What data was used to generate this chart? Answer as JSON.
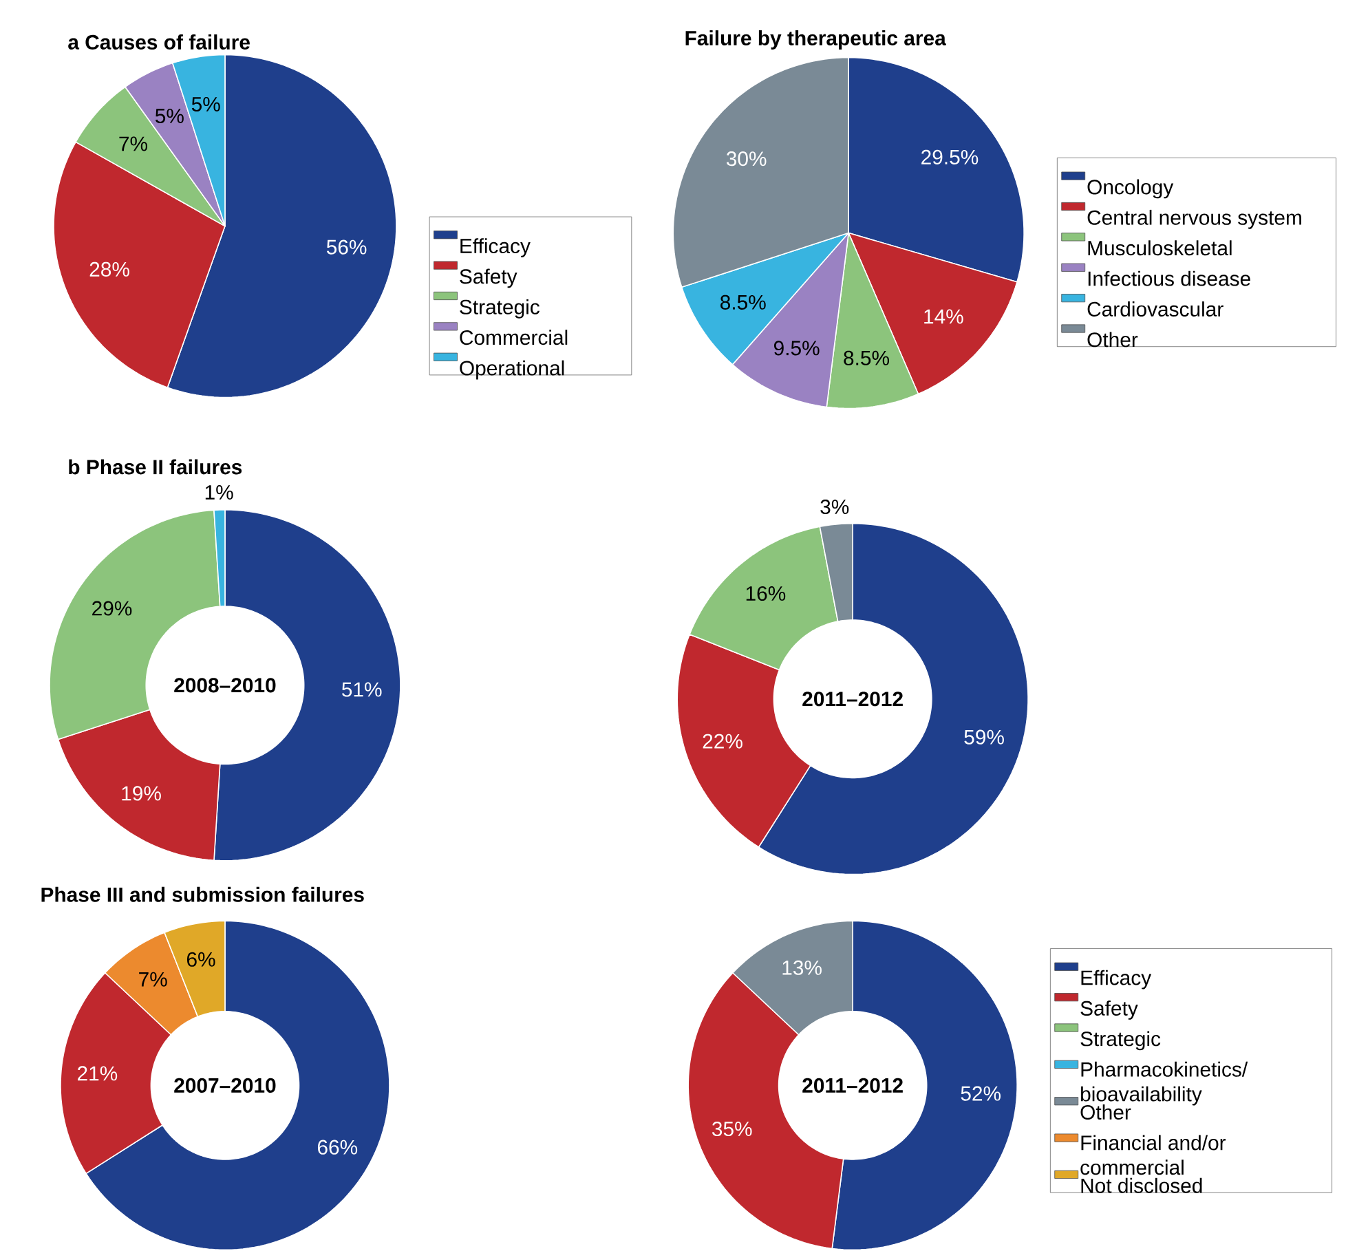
{
  "chart_data": [
    {
      "type": "pie",
      "title": "a Causes of failure",
      "categories": [
        "Efficacy",
        "Safety",
        "Strategic",
        "Commercial",
        "Operational"
      ],
      "values": [
        56,
        28,
        7,
        5,
        5
      ],
      "value_labels": [
        "56%",
        "28%",
        "7%",
        "5%",
        "5%"
      ],
      "colors": [
        "#1f3f8c",
        "#c0282e",
        "#8cc47c",
        "#9a82c2",
        "#38b4e0"
      ],
      "legend": "right"
    },
    {
      "type": "pie",
      "title": "Failure by therapeutic area",
      "categories": [
        "Oncology",
        "Central nervous system",
        "Musculoskeletal",
        "Infectious disease",
        "Cardiovascular",
        "Other"
      ],
      "values": [
        29.5,
        14,
        8.5,
        9.5,
        8.5,
        30
      ],
      "value_labels": [
        "29.5%",
        "14%",
        "8.5%",
        "9.5%",
        "8.5%",
        "30%"
      ],
      "colors": [
        "#1f3f8c",
        "#c0282e",
        "#8cc47c",
        "#9a82c2",
        "#38b4e0",
        "#7a8a96"
      ],
      "legend": "right"
    },
    {
      "type": "donut",
      "title": "b Phase II failures",
      "categories": [
        null,
        null,
        null,
        null
      ],
      "values": [
        51,
        19,
        29,
        1
      ],
      "value_labels": [
        "51%",
        "19%",
        "29%",
        "1%"
      ],
      "colors": [
        "#1f3f8c",
        "#c0282e",
        "#8cc47c",
        "#38b4e0"
      ],
      "annotations": [
        "2008–2010"
      ]
    },
    {
      "type": "donut",
      "categories": [
        null,
        null,
        null,
        null
      ],
      "values": [
        59,
        22,
        16,
        3
      ],
      "value_labels": [
        "59%",
        "22%",
        "16%",
        "3%"
      ],
      "colors": [
        "#1f3f8c",
        "#c0282e",
        "#8cc47c",
        "#7a8a96"
      ],
      "annotations": [
        "2011–2012"
      ]
    },
    {
      "type": "donut",
      "title": "Phase III and submission failures",
      "categories": [
        null,
        null,
        null,
        null
      ],
      "values": [
        66,
        21,
        7,
        6
      ],
      "value_labels": [
        "66%",
        "21%",
        "7%",
        "6%"
      ],
      "colors": [
        "#1f3f8c",
        "#c0282e",
        "#ec8a2e",
        "#e0a828"
      ],
      "annotations": [
        "2007–2010"
      ]
    },
    {
      "type": "donut",
      "categories": [
        "Efficacy",
        "Safety",
        "Strategic",
        "Pharmacokinetics/ bioavailability",
        "Other",
        "Financial and/or commercial",
        "Not disclosed"
      ],
      "values": [
        52,
        35,
        0,
        0,
        13,
        0,
        0
      ],
      "value_labels": [
        "52%",
        "35%",
        null,
        null,
        "13%",
        null,
        null
      ],
      "colors": [
        "#1f3f8c",
        "#c0282e",
        "#8cc47c",
        "#38b4e0",
        "#7a8a96",
        "#ec8a2e",
        "#e0a828"
      ],
      "annotations": [
        "2011–2012"
      ],
      "legend": "right"
    }
  ]
}
